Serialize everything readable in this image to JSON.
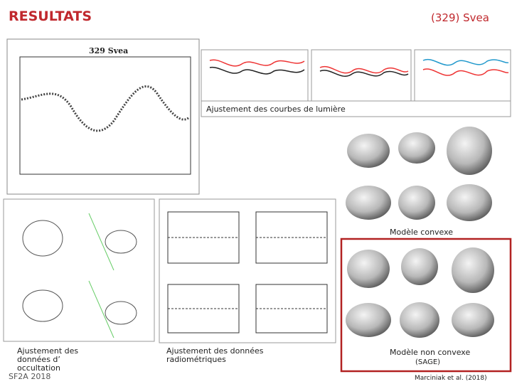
{
  "header": {
    "title": "RESULTATS",
    "subtitle": "(329) Svea"
  },
  "lightcurve": {
    "plot_title": "329 Svea",
    "caption": "Ajustement des courbes de lumière"
  },
  "convex": {
    "caption": "Modèle convexe"
  },
  "occultation": {
    "caption": "Ajustement des données d’ occultation"
  },
  "radiometric": {
    "caption": "Ajustement des données radiométriques"
  },
  "nonconvex": {
    "caption": "Modèle non convexe",
    "method": "(SAGE)",
    "reference": "Marciniak et al. (2018)"
  },
  "footer": {
    "conference": "SF2A 2018"
  }
}
